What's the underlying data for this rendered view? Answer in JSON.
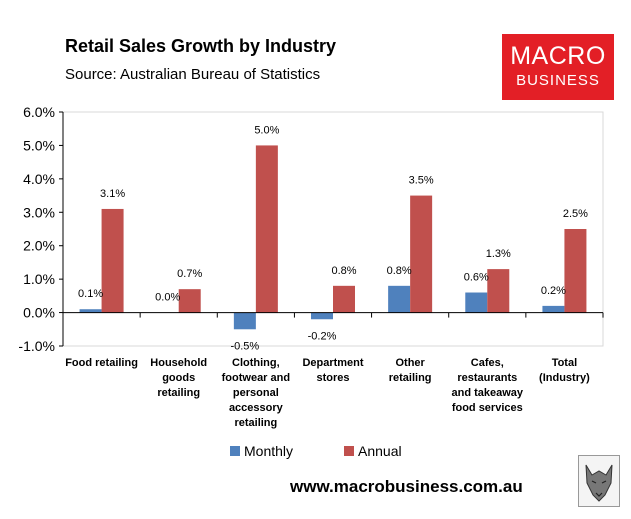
{
  "header": {
    "title": "Retail Sales Growth by Industry",
    "subtitle": "Source: Australian Bureau of Statistics"
  },
  "logo": {
    "line1": "MACRO",
    "line2": "BUSINESS"
  },
  "footer": {
    "url": "www.macrobusiness.com.au"
  },
  "chart_data": {
    "type": "bar",
    "title": "Retail Sales Growth by Industry",
    "subtitle": "Source: Australian Bureau of Statistics",
    "categories": [
      [
        "Food retailing"
      ],
      [
        "Household",
        "goods",
        "retailing"
      ],
      [
        "Clothing,",
        "footwear and",
        "personal",
        "accessory",
        "retailing"
      ],
      [
        "Department",
        "stores"
      ],
      [
        "Other",
        "retailing"
      ],
      [
        "Cafes,",
        "restaurants",
        "and takeaway",
        "food services"
      ],
      [
        "Total",
        "(Industry)"
      ]
    ],
    "series": [
      {
        "name": "Monthly",
        "color": "#4f81bd",
        "values": [
          0.1,
          0.0,
          -0.5,
          -0.2,
          0.8,
          0.6,
          0.2
        ],
        "labels": [
          "0.1%",
          "0.0%",
          "-0.5%",
          "-0.2%",
          "0.8%",
          "0.6%",
          "0.2%"
        ]
      },
      {
        "name": "Annual",
        "color": "#c0504d",
        "values": [
          3.1,
          0.7,
          5.0,
          0.8,
          3.5,
          1.3,
          2.5
        ],
        "labels": [
          "3.1%",
          "0.7%",
          "5.0%",
          "0.8%",
          "3.5%",
          "1.3%",
          "2.5%"
        ]
      }
    ],
    "yticks": [
      "-1.0%",
      "0.0%",
      "1.0%",
      "2.0%",
      "3.0%",
      "4.0%",
      "5.0%",
      "6.0%"
    ],
    "ylim": [
      -1,
      6
    ],
    "grid": false,
    "legend": "bottom"
  }
}
